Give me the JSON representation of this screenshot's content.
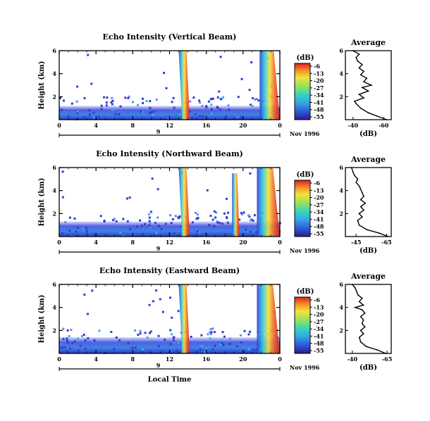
{
  "chart_data": [
    {
      "type": "heatmap",
      "title": "Echo Intensity (Vertical Beam)",
      "ylabel": "Height (km)",
      "xlabel": "",
      "xlim": [
        0,
        24
      ],
      "ylim": [
        0,
        6
      ],
      "xticks": [
        "0",
        "4",
        "8",
        "12",
        "16",
        "20",
        "0"
      ],
      "yticks": [
        "2",
        "4",
        "6"
      ],
      "date_tick": "9",
      "date_label": "Nov 1996",
      "colorbar": {
        "unit": "(dB)",
        "ticks": [
          "-6",
          "-13",
          "-20",
          "-27",
          "-34",
          "-41",
          "-48",
          "-55"
        ],
        "range": [
          -55,
          -6
        ]
      },
      "features": [
        {
          "t_start": 13.0,
          "t_end": 14.2,
          "top_km": 6.0,
          "tilt": 0.3
        },
        {
          "t_start": 21.8,
          "t_end": 24.0,
          "top_km": 6.0,
          "tilt": 0.0
        }
      ],
      "boundary_layer_km": 1.2,
      "profile": {
        "title": "Average",
        "xlabel": "(dB)",
        "xticks": [
          "-40",
          "-60"
        ],
        "xlim": [
          -35,
          -65
        ],
        "height_km": [
          0.0,
          0.3,
          0.6,
          1.0,
          1.4,
          1.6,
          1.9,
          2.2,
          2.5,
          2.8,
          3.0,
          3.3,
          3.6,
          3.9,
          4.2,
          4.5,
          4.8,
          5.1,
          5.4,
          5.7,
          6.0
        ],
        "db": [
          -62,
          -56,
          -50,
          -45,
          -42,
          -41,
          -47,
          -44,
          -50,
          -46,
          -52,
          -47,
          -49,
          -45,
          -47,
          -44,
          -46,
          -43,
          -42,
          -44,
          -40
        ]
      }
    },
    {
      "type": "heatmap",
      "title": "Echo Intensity (Northward Beam)",
      "ylabel": "Height (km)",
      "xlabel": "",
      "xlim": [
        0,
        24
      ],
      "ylim": [
        0,
        6
      ],
      "xticks": [
        "0",
        "4",
        "8",
        "12",
        "16",
        "20",
        "0"
      ],
      "yticks": [
        "2",
        "4",
        "6"
      ],
      "date_tick": "9",
      "date_label": "Nov 1996",
      "colorbar": {
        "unit": "(dB)",
        "ticks": [
          "-6",
          "-13",
          "-20",
          "-27",
          "-34",
          "-41",
          "-48",
          "-55"
        ],
        "range": [
          -55,
          -6
        ]
      },
      "features": [
        {
          "t_start": 13.0,
          "t_end": 14.2,
          "top_km": 6.0,
          "tilt": 0.3
        },
        {
          "t_start": 18.8,
          "t_end": 19.6,
          "top_km": 5.5,
          "tilt": 0.0
        },
        {
          "t_start": 21.5,
          "t_end": 24.0,
          "top_km": 6.0,
          "tilt": 0.0
        }
      ],
      "boundary_layer_km": 1.3,
      "profile": {
        "title": "Average",
        "xlabel": "(dB)",
        "xticks": [
          "-45",
          "-65"
        ],
        "xlim": [
          -38,
          -68
        ],
        "height_km": [
          0.0,
          0.3,
          0.6,
          1.0,
          1.4,
          1.7,
          2.0,
          2.3,
          2.6,
          2.9,
          3.2,
          3.5,
          3.8,
          4.1,
          4.4,
          4.7,
          5.0,
          5.3,
          5.6,
          6.0
        ],
        "db": [
          -66,
          -60,
          -52,
          -47,
          -46,
          -49,
          -47,
          -50,
          -48,
          -51,
          -48,
          -50,
          -49,
          -48,
          -47,
          -45,
          -46,
          -44,
          -43,
          -42
        ]
      }
    },
    {
      "type": "heatmap",
      "title": "Echo Intensity (Eastward Beam)",
      "ylabel": "Height (km)",
      "xlabel": "Local Time",
      "xlim": [
        0,
        24
      ],
      "ylim": [
        0,
        6
      ],
      "xticks": [
        "0",
        "4",
        "8",
        "12",
        "16",
        "20",
        "0"
      ],
      "yticks": [
        "2",
        "4",
        "6"
      ],
      "date_tick": "9",
      "date_label": "Nov 1996",
      "colorbar": {
        "unit": "(dB)",
        "ticks": [
          "-6",
          "-13",
          "-20",
          "-27",
          "-34",
          "-41",
          "-48",
          "-55"
        ],
        "range": [
          -55,
          -6
        ]
      },
      "features": [
        {
          "t_start": 13.0,
          "t_end": 14.2,
          "top_km": 6.0,
          "tilt": 0.3
        },
        {
          "t_start": 21.5,
          "t_end": 24.0,
          "top_km": 6.0,
          "tilt": 0.0
        }
      ],
      "boundary_layer_km": 1.4,
      "profile": {
        "title": "Average",
        "xlabel": "(dB)",
        "xticks": [
          "-40",
          "-65"
        ],
        "xlim": [
          -35,
          -68
        ],
        "height_km": [
          0.0,
          0.3,
          0.6,
          1.0,
          1.4,
          1.7,
          2.0,
          2.3,
          2.6,
          2.9,
          3.2,
          3.5,
          3.8,
          4.0,
          4.2,
          4.5,
          4.8,
          5.1,
          5.4,
          5.7,
          6.0
        ],
        "db": [
          -64,
          -58,
          -50,
          -46,
          -45,
          -48,
          -46,
          -49,
          -47,
          -48,
          -46,
          -49,
          -47,
          -42,
          -48,
          -45,
          -47,
          -44,
          -43,
          -42,
          -40
        ]
      }
    }
  ]
}
